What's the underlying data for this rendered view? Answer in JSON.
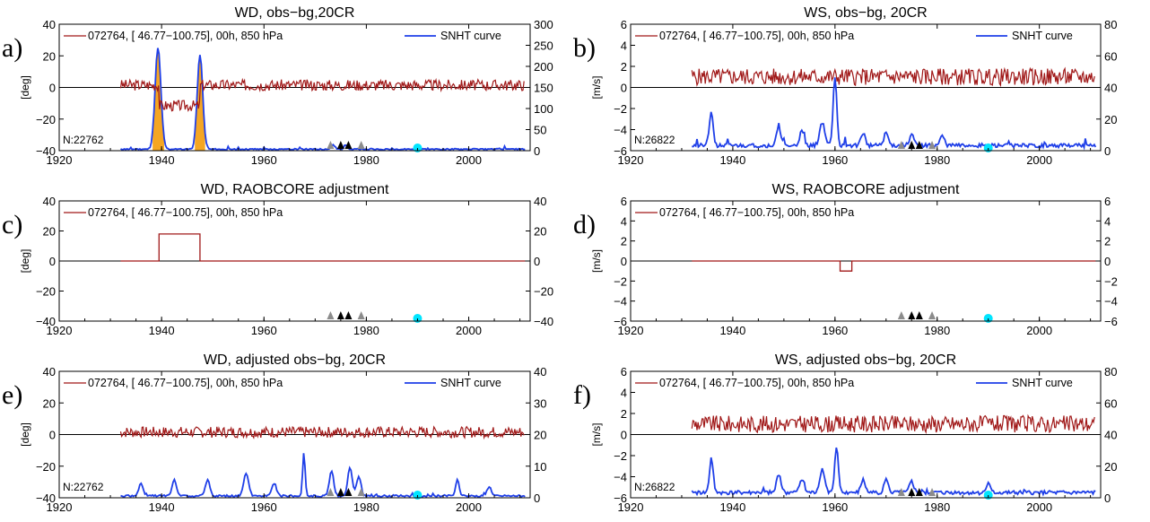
{
  "colors": {
    "obs": "#a01818",
    "snht": "#1f3fe8",
    "fill": "#f5a623",
    "marker_gray": "#8c8c8c",
    "marker_black": "#000000",
    "marker_cyan": "#00e5ff"
  },
  "chart_data": [
    {
      "id": "a",
      "type": "line",
      "panel_label": "a)",
      "title": "WD, obs−bg,20CR",
      "ylabel": "[deg]",
      "ylim": [
        -40,
        40
      ],
      "yticks": [
        "40",
        "20",
        "0",
        "−20",
        "−40"
      ],
      "y2lim": [
        0,
        300
      ],
      "y2ticks": [
        "300",
        "250",
        "200",
        "150",
        "100",
        "50",
        "0"
      ],
      "xlim": [
        1920,
        2012
      ],
      "xticks": [
        "1920",
        "1940",
        "1960",
        "1980",
        "2000"
      ],
      "legend": {
        "obs": "072764, [ 46.77−100.75], 00h, 850 hPa",
        "snht": "SNHT curve"
      },
      "n_label": "N:22762",
      "obs_series": {
        "kind": "noise",
        "range": [
          1932,
          2011
        ],
        "base": 1.5,
        "amp": 3.5,
        "seed": 3,
        "steps": [
          {
            "x0": 1939.5,
            "x1": 1947.5,
            "value": -13
          }
        ]
      },
      "snht_series": {
        "range": [
          1932,
          2011
        ],
        "base": 2,
        "noise": 3,
        "seed": 11,
        "peaks": [
          [
            1939.3,
            240,
            0.8
          ],
          [
            1947.5,
            225,
            0.75
          ],
          [
            1973.5,
            10,
            0.5
          ],
          [
            1976,
            10,
            0.5
          ],
          [
            1990,
            6,
            0.5
          ]
        ],
        "fill": true
      },
      "markers": [
        [
          1973,
          "gray"
        ],
        [
          1975,
          "black"
        ],
        [
          1976.5,
          "black"
        ],
        [
          1979,
          "gray"
        ]
      ],
      "cyan_marker": 1990
    },
    {
      "id": "b",
      "type": "line",
      "panel_label": "b)",
      "title": "WS, obs−bg, 20CR",
      "ylabel": "[m/s]",
      "ylim": [
        -6,
        6
      ],
      "yticks": [
        "6",
        "4",
        "2",
        "0",
        "−2",
        "−4",
        "−6"
      ],
      "y2lim": [
        0,
        80
      ],
      "y2ticks": [
        "80",
        "60",
        "40",
        "20",
        "0"
      ],
      "xlim": [
        1920,
        2012
      ],
      "xticks": [
        "1920",
        "1940",
        "1960",
        "1980",
        "2000"
      ],
      "legend": {
        "obs": "072764, [ 46.77−100.75], 00h, 850 hPa",
        "snht": "SNHT curve"
      },
      "n_label": "N:26822",
      "obs_series": {
        "kind": "noise",
        "range": [
          1932,
          2011
        ],
        "base": 1.0,
        "amp": 0.8,
        "seed": 5,
        "steps": []
      },
      "snht_series": {
        "range": [
          1932,
          2011
        ],
        "base": 2,
        "noise": 2.5,
        "seed": 21,
        "peaks": [
          [
            1935.8,
            22,
            0.5
          ],
          [
            1949,
            12,
            0.6
          ],
          [
            1953.5,
            9,
            0.6
          ],
          [
            1957.5,
            15,
            0.7
          ],
          [
            1960,
            44,
            0.5
          ],
          [
            1965.5,
            8,
            0.6
          ],
          [
            1970,
            8,
            0.6
          ],
          [
            1975,
            7,
            0.6
          ],
          [
            1981,
            6,
            0.6
          ]
        ],
        "fill": false
      },
      "markers": [
        [
          1973,
          "gray"
        ],
        [
          1975,
          "black"
        ],
        [
          1976.5,
          "black"
        ],
        [
          1979,
          "gray"
        ]
      ],
      "cyan_marker": 1990
    },
    {
      "id": "c",
      "type": "line",
      "panel_label": "c)",
      "title": "WD, RAOBCORE adjustment",
      "ylabel": "[deg]",
      "ylim": [
        -40,
        40
      ],
      "yticks": [
        "40",
        "20",
        "0",
        "−20",
        "−40"
      ],
      "y2lim": [
        -40,
        40
      ],
      "y2ticks": [
        "40",
        "20",
        "0",
        "−20",
        "−40"
      ],
      "xlim": [
        1920,
        2012
      ],
      "xticks": [
        "1920",
        "1940",
        "1960",
        "1980",
        "2000"
      ],
      "legend": {
        "obs": "072764, [ 46.77−100.75], 00h, 850 hPa"
      },
      "obs_series": {
        "kind": "adjust",
        "range": [
          1932,
          2011
        ],
        "base": 0,
        "steps": [
          {
            "x0": 1939.5,
            "x1": 1947.5,
            "value": 18
          }
        ]
      },
      "markers": [
        [
          1973,
          "gray"
        ],
        [
          1975,
          "black"
        ],
        [
          1976.5,
          "black"
        ],
        [
          1979,
          "gray"
        ]
      ],
      "cyan_marker": 1990
    },
    {
      "id": "d",
      "type": "line",
      "panel_label": "d)",
      "title": "WS, RAOBCORE adjustment",
      "ylabel": "[m/s]",
      "ylim": [
        -6,
        6
      ],
      "yticks": [
        "6",
        "4",
        "2",
        "0",
        "−2",
        "−4",
        "−6"
      ],
      "y2lim": [
        -6,
        6
      ],
      "y2ticks": [
        "6",
        "4",
        "2",
        "0",
        "−2",
        "−4",
        "−6"
      ],
      "xlim": [
        1920,
        2012
      ],
      "xticks": [
        "1920",
        "1940",
        "1960",
        "1980",
        "2000"
      ],
      "legend": {
        "obs": "072764, [ 46.77−100.75], 00h, 850 hPa"
      },
      "obs_series": {
        "kind": "adjust",
        "range": [
          1932,
          2011
        ],
        "base": 0,
        "steps": [
          {
            "x0": 1961,
            "x1": 1963.3,
            "value": -1.0
          }
        ]
      },
      "markers": [
        [
          1973,
          "gray"
        ],
        [
          1975,
          "black"
        ],
        [
          1976.5,
          "black"
        ],
        [
          1979,
          "gray"
        ]
      ],
      "cyan_marker": 1990
    },
    {
      "id": "e",
      "type": "line",
      "panel_label": "e)",
      "title": "WD, adjusted obs−bg, 20CR",
      "ylabel": "[deg]",
      "ylim": [
        -40,
        40
      ],
      "yticks": [
        "40",
        "20",
        "0",
        "−20",
        "−40"
      ],
      "y2lim": [
        0,
        40
      ],
      "y2ticks": [
        "40",
        "30",
        "20",
        "10",
        "0"
      ],
      "xlim": [
        1920,
        2012
      ],
      "xticks": [
        "1920",
        "1940",
        "1960",
        "1980",
        "2000"
      ],
      "legend": {
        "obs": "072764, [ 46.77−100.75], 00h, 850 hPa",
        "snht": "SNHT curve"
      },
      "n_label": "N:22762",
      "obs_series": {
        "kind": "noise",
        "range": [
          1932,
          2011
        ],
        "base": 1.5,
        "amp": 3.5,
        "seed": 7,
        "steps": []
      },
      "snht_series": {
        "range": [
          1932,
          2011
        ],
        "base": 0.3,
        "noise": 0.6,
        "seed": 31,
        "peaks": [
          [
            1936,
            4,
            0.6
          ],
          [
            1942.5,
            5,
            0.6
          ],
          [
            1949,
            5,
            0.6
          ],
          [
            1956.5,
            7,
            0.7
          ],
          [
            1962,
            4,
            0.6
          ],
          [
            1967.8,
            13.5,
            0.35
          ],
          [
            1973.2,
            8,
            0.6
          ],
          [
            1976.8,
            9,
            0.6
          ],
          [
            1978.5,
            6,
            0.6
          ],
          [
            1997.8,
            5,
            0.5
          ],
          [
            2004,
            3,
            0.6
          ]
        ],
        "fill": false
      },
      "markers": [
        [
          1973,
          "gray"
        ],
        [
          1975,
          "black"
        ],
        [
          1976.5,
          "black"
        ],
        [
          1979,
          "gray"
        ]
      ],
      "cyan_marker": 1990
    },
    {
      "id": "f",
      "type": "line",
      "panel_label": "f)",
      "title": "WS, adjusted obs−bg, 20CR",
      "ylabel": "[m/s]",
      "ylim": [
        -6,
        6
      ],
      "yticks": [
        "6",
        "4",
        "2",
        "0",
        "−2",
        "−4",
        "−6"
      ],
      "y2lim": [
        0,
        80
      ],
      "y2ticks": [
        "80",
        "60",
        "40",
        "20",
        "0"
      ],
      "xlim": [
        1920,
        2012
      ],
      "xticks": [
        "1920",
        "1940",
        "1960",
        "1980",
        "2000"
      ],
      "legend": {
        "obs": "072764, [ 46.77−100.75], 00h, 850 hPa",
        "snht": "SNHT curve"
      },
      "n_label": "N:26822",
      "obs_series": {
        "kind": "noise",
        "range": [
          1932,
          2011
        ],
        "base": 1.0,
        "amp": 0.8,
        "seed": 9,
        "steps": []
      },
      "snht_series": {
        "range": [
          1932,
          2011
        ],
        "base": 2,
        "noise": 2.5,
        "seed": 41,
        "peaks": [
          [
            1935.8,
            22,
            0.5
          ],
          [
            1949,
            12,
            0.6
          ],
          [
            1953.5,
            9,
            0.6
          ],
          [
            1957.5,
            15,
            0.7
          ],
          [
            1960.3,
            28,
            0.5
          ],
          [
            1965.5,
            8,
            0.6
          ],
          [
            1970,
            8,
            0.6
          ],
          [
            1975,
            7,
            0.6
          ],
          [
            1990,
            6,
            0.5
          ]
        ],
        "fill": false
      },
      "markers": [
        [
          1973,
          "gray"
        ],
        [
          1975,
          "black"
        ],
        [
          1976.5,
          "black"
        ],
        [
          1979,
          "gray"
        ]
      ],
      "cyan_marker": 1990
    }
  ]
}
